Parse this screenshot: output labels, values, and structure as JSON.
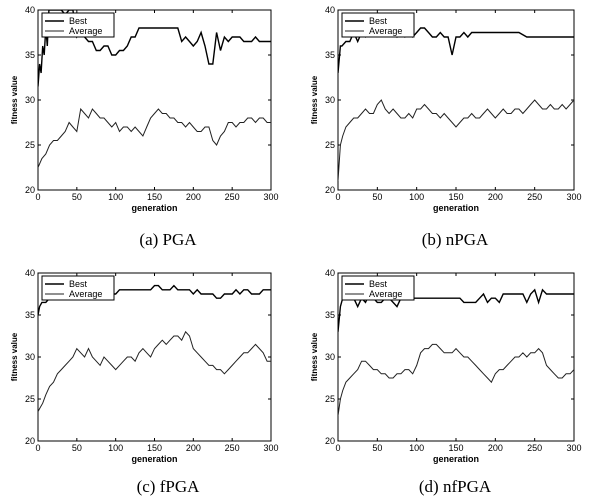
{
  "chart_data": [
    {
      "type": "line",
      "caption": "(a) PGA",
      "xlabel": "generation",
      "ylabel": "fitness value",
      "xlim": [
        0,
        300
      ],
      "ylim": [
        20,
        40
      ],
      "xticks": [
        0,
        50,
        100,
        150,
        200,
        250,
        300
      ],
      "yticks": [
        20,
        25,
        30,
        35,
        40
      ],
      "legend": "top-left",
      "series": [
        {
          "name": "Best",
          "x": [
            0,
            2,
            4,
            6,
            8,
            10,
            12,
            14,
            15,
            20,
            25,
            30,
            35,
            40,
            45,
            50,
            55,
            60,
            65,
            70,
            75,
            80,
            85,
            90,
            95,
            100,
            105,
            110,
            115,
            120,
            125,
            130,
            135,
            140,
            145,
            150,
            155,
            160,
            165,
            170,
            175,
            180,
            185,
            190,
            195,
            200,
            205,
            210,
            215,
            220,
            225,
            230,
            235,
            240,
            245,
            250,
            255,
            260,
            265,
            270,
            275,
            280,
            285,
            290,
            295,
            300
          ],
          "y": [
            31.5,
            34,
            33,
            36,
            35,
            38,
            36,
            40,
            40,
            40,
            40,
            40,
            39.5,
            40,
            40,
            37,
            37.5,
            37,
            36.5,
            36.5,
            35.5,
            35.5,
            36,
            36,
            35,
            35,
            35.5,
            35.5,
            36,
            37,
            37,
            38,
            38,
            38,
            38,
            38,
            38,
            38,
            38,
            38,
            38,
            38,
            36.5,
            37,
            36.5,
            36,
            36.5,
            37.5,
            36,
            34,
            34,
            37.5,
            35.5,
            37,
            36.5,
            37,
            37,
            37,
            36.5,
            36.5,
            36.5,
            37,
            36.5,
            36.5,
            36.5,
            36.5
          ]
        },
        {
          "name": "Average",
          "x": [
            0,
            5,
            10,
            15,
            20,
            25,
            30,
            35,
            40,
            45,
            50,
            55,
            60,
            65,
            70,
            75,
            80,
            85,
            90,
            95,
            100,
            105,
            110,
            115,
            120,
            125,
            130,
            135,
            140,
            145,
            150,
            155,
            160,
            165,
            170,
            175,
            180,
            185,
            190,
            195,
            200,
            205,
            210,
            215,
            220,
            225,
            230,
            235,
            240,
            245,
            250,
            255,
            260,
            265,
            270,
            275,
            280,
            285,
            290,
            295,
            300
          ],
          "y": [
            22.5,
            23.5,
            24,
            25,
            25.5,
            25.5,
            26,
            26.5,
            27.5,
            27,
            26.5,
            29,
            28.5,
            28,
            29,
            28.5,
            28,
            28,
            27.5,
            27,
            27.5,
            26.5,
            27,
            27,
            26.5,
            27,
            26.5,
            26,
            27,
            28,
            28.5,
            29,
            28.5,
            28.5,
            28,
            28,
            27.5,
            27.5,
            27,
            27.5,
            27,
            26.5,
            26.5,
            27,
            27,
            25.5,
            25,
            26,
            26.5,
            27.5,
            27.5,
            27,
            27.5,
            27.5,
            28,
            28,
            27.5,
            28,
            28,
            27.5,
            27.5
          ]
        }
      ]
    },
    {
      "type": "line",
      "caption": "(b) nPGA",
      "xlabel": "generation",
      "ylabel": "fitness value",
      "xlim": [
        0,
        300
      ],
      "ylim": [
        20,
        40
      ],
      "xticks": [
        0,
        50,
        100,
        150,
        200,
        250,
        300
      ],
      "yticks": [
        20,
        25,
        30,
        35,
        40
      ],
      "legend": "top-left",
      "series": [
        {
          "name": "Best",
          "x": [
            0,
            3,
            5,
            10,
            15,
            20,
            25,
            30,
            35,
            40,
            45,
            50,
            55,
            60,
            65,
            70,
            75,
            80,
            85,
            90,
            95,
            100,
            105,
            110,
            115,
            120,
            125,
            130,
            135,
            140,
            145,
            150,
            155,
            160,
            165,
            170,
            175,
            180,
            185,
            190,
            195,
            200,
            210,
            220,
            230,
            240,
            250,
            260,
            270,
            280,
            290,
            295,
            300
          ],
          "y": [
            33,
            36,
            36,
            36.5,
            36.5,
            37.5,
            36.5,
            37.5,
            37,
            37.5,
            37.5,
            37.5,
            37.5,
            37.5,
            37.5,
            37.5,
            37,
            37.5,
            37,
            37.5,
            37,
            37.5,
            38,
            38,
            37.5,
            37,
            37,
            37.5,
            37,
            37,
            35,
            37,
            37,
            37.5,
            37,
            37.5,
            37.5,
            37.5,
            37.5,
            37.5,
            37.5,
            37.5,
            37.5,
            37.5,
            37.5,
            37,
            37,
            37,
            37,
            37,
            37,
            37,
            37
          ]
        },
        {
          "name": "Average",
          "x": [
            0,
            3,
            6,
            10,
            15,
            20,
            25,
            30,
            35,
            40,
            45,
            50,
            55,
            60,
            65,
            70,
            75,
            80,
            85,
            90,
            95,
            100,
            105,
            110,
            115,
            120,
            125,
            130,
            135,
            140,
            145,
            150,
            155,
            160,
            165,
            170,
            175,
            180,
            185,
            190,
            195,
            200,
            205,
            210,
            215,
            220,
            225,
            230,
            235,
            240,
            245,
            250,
            255,
            260,
            265,
            270,
            275,
            280,
            285,
            290,
            295,
            300
          ],
          "y": [
            21,
            25,
            26,
            27,
            27.5,
            28,
            28,
            28.5,
            29,
            28.5,
            28.5,
            29.5,
            30,
            29,
            28.5,
            29,
            28.5,
            28,
            28,
            28.5,
            28,
            29,
            29,
            29.5,
            29,
            28.5,
            28.5,
            28,
            28.5,
            28,
            27.5,
            27,
            27.5,
            28,
            28,
            28.5,
            28,
            28,
            28.5,
            29,
            28.5,
            28,
            28.5,
            29,
            28.5,
            28.5,
            29,
            29,
            28.5,
            29,
            29.5,
            30,
            29.5,
            29,
            29,
            29.5,
            29,
            29,
            29.5,
            29,
            29.5,
            30
          ]
        }
      ]
    },
    {
      "type": "line",
      "caption": "(c) fPGA",
      "xlabel": "generation",
      "ylabel": "fitness value",
      "xlim": [
        0,
        300
      ],
      "ylim": [
        20,
        40
      ],
      "xticks": [
        0,
        50,
        100,
        150,
        200,
        250,
        300
      ],
      "yticks": [
        20,
        25,
        30,
        35,
        40
      ],
      "legend": "top-left",
      "series": [
        {
          "name": "Best",
          "x": [
            0,
            2,
            5,
            10,
            15,
            20,
            25,
            30,
            35,
            40,
            45,
            50,
            55,
            60,
            65,
            70,
            75,
            80,
            85,
            90,
            95,
            100,
            105,
            110,
            115,
            120,
            125,
            130,
            135,
            140,
            145,
            150,
            155,
            160,
            165,
            170,
            175,
            180,
            185,
            190,
            195,
            200,
            205,
            210,
            215,
            220,
            225,
            230,
            235,
            240,
            245,
            250,
            255,
            260,
            265,
            270,
            275,
            280,
            285,
            290,
            295,
            300
          ],
          "y": [
            35,
            36,
            36.5,
            36.5,
            37,
            37,
            37.5,
            37.5,
            37.5,
            37.5,
            37.5,
            37.5,
            37.5,
            37.5,
            37.5,
            37.5,
            37.5,
            37.5,
            37.5,
            37.5,
            37.5,
            37.5,
            38,
            38,
            38,
            38,
            38,
            38,
            38,
            38,
            38,
            38.5,
            38.5,
            38,
            38,
            38,
            38.5,
            38,
            38,
            38,
            38,
            37.5,
            38,
            37.5,
            37.5,
            37.5,
            37.5,
            37,
            37,
            37.5,
            37.5,
            37.5,
            38,
            37.5,
            38,
            38,
            37.5,
            37.5,
            37.5,
            38,
            38,
            38
          ]
        },
        {
          "name": "Average",
          "x": [
            0,
            3,
            6,
            10,
            15,
            20,
            25,
            30,
            35,
            40,
            45,
            50,
            55,
            60,
            65,
            70,
            75,
            80,
            85,
            90,
            95,
            100,
            105,
            110,
            115,
            120,
            125,
            130,
            135,
            140,
            145,
            150,
            155,
            160,
            165,
            170,
            175,
            180,
            185,
            190,
            195,
            200,
            205,
            210,
            215,
            220,
            225,
            230,
            235,
            240,
            245,
            250,
            255,
            260,
            265,
            270,
            275,
            280,
            285,
            290,
            295,
            300
          ],
          "y": [
            23.5,
            24,
            24.5,
            25.5,
            26.5,
            27,
            28,
            28.5,
            29,
            29.5,
            30,
            31,
            30.5,
            30,
            31,
            30,
            29.5,
            29,
            30,
            29.5,
            29,
            28.5,
            29,
            29.5,
            30,
            30,
            29.5,
            30.5,
            31,
            30.5,
            30,
            31,
            31.5,
            32,
            31.5,
            32,
            32.5,
            32.5,
            32,
            33,
            32.5,
            31,
            30.5,
            30,
            29.5,
            29,
            29,
            28.5,
            28.5,
            28,
            28.5,
            29,
            29.5,
            30,
            30.5,
            30.5,
            31,
            31.5,
            31,
            30.5,
            29.5,
            29.5
          ]
        }
      ]
    },
    {
      "type": "line",
      "caption": "(d) nfPGA",
      "xlabel": "generation",
      "ylabel": "fitness value",
      "xlim": [
        0,
        300
      ],
      "ylim": [
        20,
        40
      ],
      "xticks": [
        0,
        50,
        100,
        150,
        200,
        250,
        300
      ],
      "yticks": [
        20,
        25,
        30,
        35,
        40
      ],
      "legend": "top-left",
      "series": [
        {
          "name": "Best",
          "x": [
            0,
            3,
            6,
            10,
            15,
            20,
            25,
            30,
            35,
            40,
            45,
            50,
            55,
            60,
            65,
            70,
            75,
            80,
            85,
            90,
            95,
            100,
            105,
            110,
            115,
            120,
            125,
            130,
            135,
            140,
            145,
            150,
            155,
            160,
            165,
            170,
            175,
            180,
            185,
            190,
            195,
            200,
            205,
            210,
            215,
            220,
            225,
            230,
            235,
            240,
            245,
            250,
            255,
            260,
            265,
            270,
            275,
            280,
            285,
            290,
            295,
            300
          ],
          "y": [
            33,
            36,
            37,
            37,
            37.5,
            37,
            36,
            37,
            36.5,
            37.5,
            37,
            36.5,
            36.5,
            37,
            37,
            36.5,
            36,
            37,
            37.5,
            37,
            37,
            37,
            37,
            37,
            37,
            37,
            37,
            37,
            37,
            37,
            37,
            37,
            37,
            36.5,
            36.5,
            36.5,
            36.5,
            37,
            37.5,
            36.5,
            37,
            37,
            36.5,
            37.5,
            37.5,
            37.5,
            37.5,
            37.5,
            37.5,
            36.5,
            37.5,
            38,
            36.5,
            38,
            37.5,
            37.5,
            37.5,
            37.5,
            37.5,
            37.5,
            37.5,
            37.5
          ]
        },
        {
          "name": "Average",
          "x": [
            0,
            3,
            6,
            10,
            15,
            20,
            25,
            30,
            35,
            40,
            45,
            50,
            55,
            60,
            65,
            70,
            75,
            80,
            85,
            90,
            95,
            100,
            105,
            110,
            115,
            120,
            125,
            130,
            135,
            140,
            145,
            150,
            155,
            160,
            165,
            170,
            175,
            180,
            185,
            190,
            195,
            200,
            205,
            210,
            215,
            220,
            225,
            230,
            235,
            240,
            245,
            250,
            255,
            260,
            265,
            270,
            275,
            280,
            285,
            290,
            295,
            300
          ],
          "y": [
            23,
            25,
            26,
            27,
            27.5,
            28,
            28.5,
            29.5,
            29.5,
            29,
            28.5,
            28.5,
            28,
            28,
            27.5,
            27.5,
            28,
            28,
            28.5,
            28.5,
            28,
            29,
            30.5,
            31,
            31,
            31.5,
            31.5,
            31,
            30.5,
            30.5,
            30.5,
            31,
            30.5,
            30,
            30,
            29.5,
            29,
            28.5,
            28,
            27.5,
            27,
            28,
            28.5,
            28.5,
            29,
            29.5,
            30,
            30,
            30.5,
            30,
            30.5,
            30.5,
            31,
            30.5,
            29,
            28.5,
            28,
            27.5,
            27.5,
            28,
            28,
            28.5
          ]
        }
      ]
    }
  ]
}
